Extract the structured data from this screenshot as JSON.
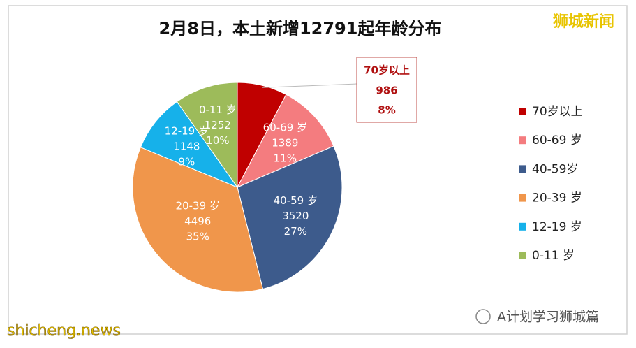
{
  "chart_data": {
    "type": "pie",
    "title": "2月8日，本土新增12791起年龄分布",
    "categories": [
      "70岁以上",
      "60-69 岁",
      "40-59岁",
      "20-39 岁",
      "12-19 岁",
      " 0-11 岁"
    ],
    "slice_labels": [
      "70岁以上",
      "60-69 岁",
      "40-59 岁",
      "20-39 岁",
      "12-19 岁",
      "0-11 岁"
    ],
    "values": [
      986,
      1389,
      3520,
      4496,
      1148,
      1252
    ],
    "percent_labels": [
      "8%",
      "11%",
      "27%",
      "35%",
      "9%",
      "10%"
    ],
    "colors": [
      "#c00000",
      "#f47c7f",
      "#3d5b8c",
      "#f0964b",
      "#16b1ea",
      "#9dbb5a"
    ],
    "legend": "right"
  },
  "watermarks": {
    "top_right": "狮城新闻",
    "bottom_left": "shicheng.news",
    "bottom_right": "A计划学习狮城篇"
  }
}
